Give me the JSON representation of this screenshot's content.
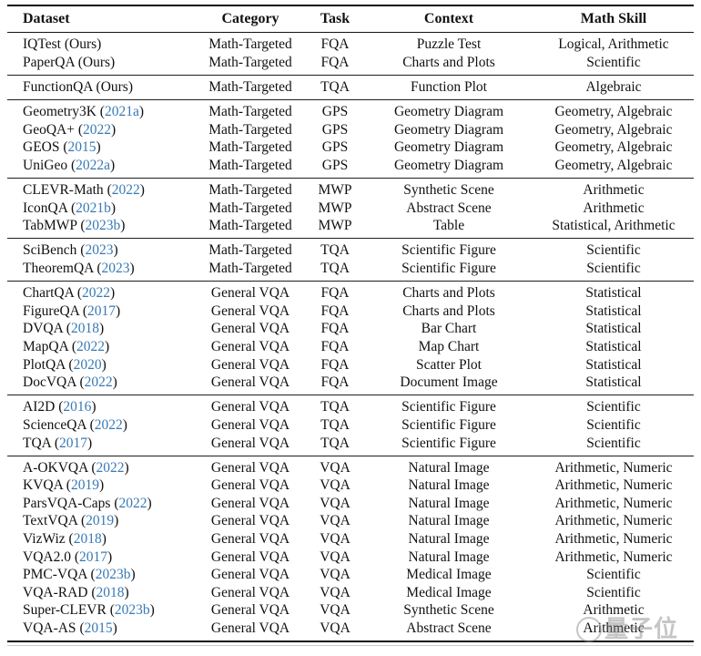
{
  "colors": {
    "link": "#3779b5",
    "text": "#111111",
    "rule": "#0c0c0c",
    "watermark": "#8e8e8e"
  },
  "punctuation": {
    "open": "(",
    "close": ")"
  },
  "header": {
    "columns": [
      "Dataset",
      "Category",
      "Task",
      "Context",
      "Math Skill"
    ]
  },
  "groups": [
    {
      "rows": [
        {
          "dataset": "IQTest",
          "cite": "Ours",
          "link": false,
          "category": "Math-Targeted",
          "task": "FQA",
          "context": "Puzzle Test",
          "skill": "Logical, Arithmetic"
        },
        {
          "dataset": "PaperQA",
          "cite": "Ours",
          "link": false,
          "category": "Math-Targeted",
          "task": "FQA",
          "context": "Charts and Plots",
          "skill": "Scientific"
        }
      ]
    },
    {
      "rows": [
        {
          "dataset": "FunctionQA",
          "cite": "Ours",
          "link": false,
          "category": "Math-Targeted",
          "task": "TQA",
          "context": "Function Plot",
          "skill": "Algebraic"
        }
      ]
    },
    {
      "rows": [
        {
          "dataset": "Geometry3K",
          "cite": "2021a",
          "link": true,
          "category": "Math-Targeted",
          "task": "GPS",
          "context": "Geometry Diagram",
          "skill": "Geometry, Algebraic"
        },
        {
          "dataset": "GeoQA+",
          "cite": "2022",
          "link": true,
          "category": "Math-Targeted",
          "task": "GPS",
          "context": "Geometry Diagram",
          "skill": "Geometry, Algebraic"
        },
        {
          "dataset": "GEOS",
          "cite": "2015",
          "link": true,
          "category": "Math-Targeted",
          "task": "GPS",
          "context": "Geometry Diagram",
          "skill": "Geometry, Algebraic"
        },
        {
          "dataset": "UniGeo",
          "cite": "2022a",
          "link": true,
          "category": "Math-Targeted",
          "task": "GPS",
          "context": "Geometry Diagram",
          "skill": "Geometry, Algebraic"
        }
      ]
    },
    {
      "rows": [
        {
          "dataset": "CLEVR-Math",
          "cite": "2022",
          "link": true,
          "category": "Math-Targeted",
          "task": "MWP",
          "context": "Synthetic Scene",
          "skill": "Arithmetic"
        },
        {
          "dataset": "IconQA",
          "cite": "2021b",
          "link": true,
          "category": "Math-Targeted",
          "task": "MWP",
          "context": "Abstract Scene",
          "skill": "Arithmetic"
        },
        {
          "dataset": "TabMWP",
          "cite": "2023b",
          "link": true,
          "category": "Math-Targeted",
          "task": "MWP",
          "context": "Table",
          "skill": "Statistical, Arithmetic"
        }
      ]
    },
    {
      "rows": [
        {
          "dataset": "SciBench",
          "cite": "2023",
          "link": true,
          "category": "Math-Targeted",
          "task": "TQA",
          "context": "Scientific Figure",
          "skill": "Scientific"
        },
        {
          "dataset": "TheoremQA",
          "cite": "2023",
          "link": true,
          "category": "Math-Targeted",
          "task": "TQA",
          "context": "Scientific Figure",
          "skill": "Scientific"
        }
      ]
    },
    {
      "rows": [
        {
          "dataset": "ChartQA",
          "cite": "2022",
          "link": true,
          "category": "General VQA",
          "task": "FQA",
          "context": "Charts and Plots",
          "skill": "Statistical"
        },
        {
          "dataset": "FigureQA",
          "cite": "2017",
          "link": true,
          "category": "General VQA",
          "task": "FQA",
          "context": "Charts and Plots",
          "skill": "Statistical"
        },
        {
          "dataset": "DVQA",
          "cite": "2018",
          "link": true,
          "category": "General VQA",
          "task": "FQA",
          "context": "Bar Chart",
          "skill": "Statistical"
        },
        {
          "dataset": "MapQA",
          "cite": "2022",
          "link": true,
          "category": "General VQA",
          "task": "FQA",
          "context": "Map Chart",
          "skill": "Statistical"
        },
        {
          "dataset": "PlotQA",
          "cite": "2020",
          "link": true,
          "category": "General VQA",
          "task": "FQA",
          "context": "Scatter Plot",
          "skill": "Statistical"
        },
        {
          "dataset": "DocVQA",
          "cite": "2022",
          "link": true,
          "category": "General VQA",
          "task": "FQA",
          "context": "Document Image",
          "skill": "Statistical"
        }
      ]
    },
    {
      "rows": [
        {
          "dataset": "AI2D",
          "cite": "2016",
          "link": true,
          "category": "General VQA",
          "task": "TQA",
          "context": "Scientific Figure",
          "skill": "Scientific"
        },
        {
          "dataset": "ScienceQA",
          "cite": "2022",
          "link": true,
          "category": "General VQA",
          "task": "TQA",
          "context": "Scientific Figure",
          "skill": "Scientific"
        },
        {
          "dataset": "TQA",
          "cite": "2017",
          "link": true,
          "category": "General VQA",
          "task": "TQA",
          "context": "Scientific Figure",
          "skill": "Scientific"
        }
      ]
    },
    {
      "rows": [
        {
          "dataset": "A-OKVQA",
          "cite": "2022",
          "link": true,
          "category": "General VQA",
          "task": "VQA",
          "context": "Natural Image",
          "skill": "Arithmetic, Numeric"
        },
        {
          "dataset": "KVQA",
          "cite": "2019",
          "link": true,
          "category": "General VQA",
          "task": "VQA",
          "context": "Natural Image",
          "skill": "Arithmetic, Numeric"
        },
        {
          "dataset": "ParsVQA-Caps",
          "cite": "2022",
          "link": true,
          "category": "General VQA",
          "task": "VQA",
          "context": "Natural Image",
          "skill": "Arithmetic, Numeric"
        },
        {
          "dataset": "TextVQA",
          "cite": "2019",
          "link": true,
          "category": "General VQA",
          "task": "VQA",
          "context": "Natural Image",
          "skill": "Arithmetic, Numeric"
        },
        {
          "dataset": "VizWiz",
          "cite": "2018",
          "link": true,
          "category": "General VQA",
          "task": "VQA",
          "context": "Natural Image",
          "skill": "Arithmetic, Numeric"
        },
        {
          "dataset": "VQA2.0",
          "cite": "2017",
          "link": true,
          "category": "General VQA",
          "task": "VQA",
          "context": "Natural Image",
          "skill": "Arithmetic, Numeric"
        },
        {
          "dataset": "PMC-VQA",
          "cite": "2023b",
          "link": true,
          "category": "General VQA",
          "task": "VQA",
          "context": "Medical Image",
          "skill": "Scientific"
        },
        {
          "dataset": "VQA-RAD",
          "cite": "2018",
          "link": true,
          "category": "General VQA",
          "task": "VQA",
          "context": "Medical Image",
          "skill": "Scientific"
        },
        {
          "dataset": "Super-CLEVR",
          "cite": "2023b",
          "link": true,
          "category": "General VQA",
          "task": "VQA",
          "context": "Synthetic Scene",
          "skill": "Arithmetic"
        },
        {
          "dataset": "VQA-AS",
          "cite": "2015",
          "link": true,
          "category": "General VQA",
          "task": "VQA",
          "context": "Abstract Scene",
          "skill": "Arithmetic"
        }
      ]
    }
  ],
  "watermark": {
    "text": "量子位"
  }
}
